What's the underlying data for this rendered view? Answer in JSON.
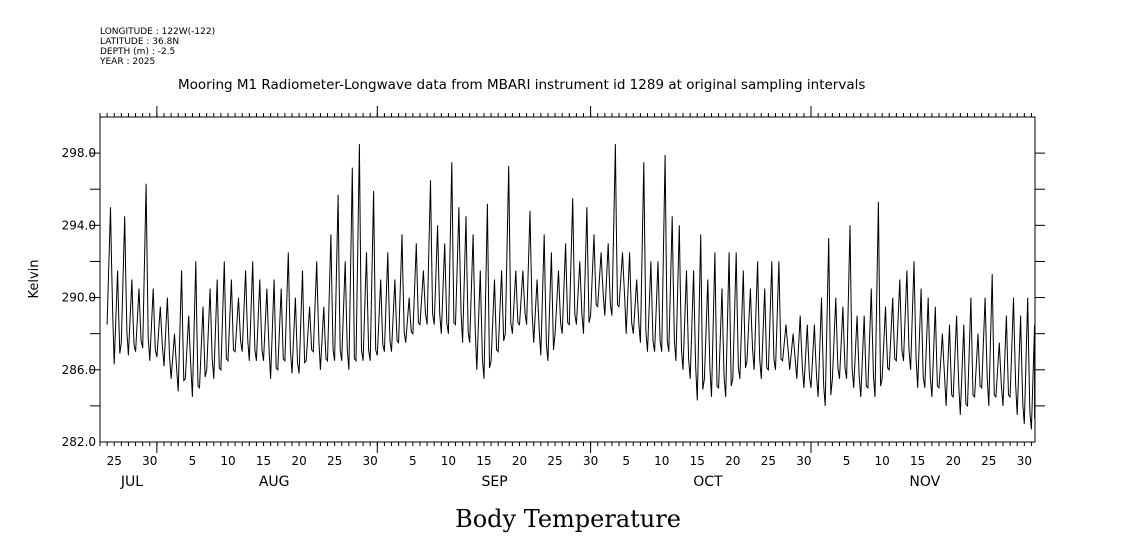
{
  "header": {
    "longitude": "LONGITUDE : 122W(-122)",
    "latitude": "LATITUDE : 36.8N",
    "depth": "DEPTH (m) : -2.5",
    "year": "YEAR : 2025"
  },
  "caption": "Body Temperature",
  "chart_data": {
    "type": "line",
    "title": "Mooring M1 Radiometer-Longwave data from MBARI instrument id 1289 at original sampling intervals",
    "ylabel": "Kelvin",
    "xlabel": "",
    "ylim": [
      282.0,
      300.0
    ],
    "yticks": [
      282.0,
      286.0,
      290.0,
      294.0,
      298.0
    ],
    "ytick_labels": [
      "282.0",
      "286.0",
      "290.0",
      "294.0",
      "298.0"
    ],
    "x_unit": "day of year 2025",
    "xlim": [
      204,
      335.5
    ],
    "x_day_labels": [
      {
        "day": 206,
        "label": "25"
      },
      {
        "day": 211,
        "label": "30"
      },
      {
        "day": 217,
        "label": "5"
      },
      {
        "day": 222,
        "label": "10"
      },
      {
        "day": 227,
        "label": "15"
      },
      {
        "day": 232,
        "label": "20"
      },
      {
        "day": 237,
        "label": "25"
      },
      {
        "day": 242,
        "label": "30"
      },
      {
        "day": 248,
        "label": "5"
      },
      {
        "day": 253,
        "label": "10"
      },
      {
        "day": 258,
        "label": "15"
      },
      {
        "day": 263,
        "label": "20"
      },
      {
        "day": 268,
        "label": "25"
      },
      {
        "day": 273,
        "label": "30"
      },
      {
        "day": 278,
        "label": "5"
      },
      {
        "day": 283,
        "label": "10"
      },
      {
        "day": 288,
        "label": "15"
      },
      {
        "day": 293,
        "label": "20"
      },
      {
        "day": 298,
        "label": "25"
      },
      {
        "day": 303,
        "label": "30"
      },
      {
        "day": 309,
        "label": "5"
      },
      {
        "day": 314,
        "label": "10"
      },
      {
        "day": 319,
        "label": "15"
      },
      {
        "day": 324,
        "label": "20"
      },
      {
        "day": 329,
        "label": "25"
      },
      {
        "day": 334,
        "label": "30"
      }
    ],
    "month_boundaries": [
      212,
      243,
      273,
      304
    ],
    "month_labels": [
      {
        "day": 208.5,
        "label": "JUL"
      },
      {
        "day": 228.5,
        "label": "AUG"
      },
      {
        "day": 259.5,
        "label": "SEP"
      },
      {
        "day": 289.5,
        "label": "OCT"
      },
      {
        "day": 320,
        "label": "NOV"
      }
    ],
    "series": [
      {
        "name": "Radiometer-Longwave",
        "sampling": "daily min / max envelope (diurnal cycle)",
        "days": [
          205,
          206,
          207,
          208,
          209,
          210,
          211,
          212,
          213,
          214,
          215,
          216,
          217,
          218,
          219,
          220,
          221,
          222,
          223,
          224,
          225,
          226,
          227,
          228,
          229,
          230,
          231,
          232,
          233,
          234,
          235,
          236,
          237,
          238,
          239,
          240,
          241,
          242,
          243,
          244,
          245,
          246,
          247,
          248,
          249,
          250,
          251,
          252,
          253,
          254,
          255,
          256,
          257,
          258,
          259,
          260,
          261,
          262,
          263,
          264,
          265,
          266,
          267,
          268,
          269,
          270,
          271,
          272,
          273,
          274,
          275,
          276,
          277,
          278,
          279,
          280,
          281,
          282,
          283,
          284,
          285,
          286,
          287,
          288,
          289,
          290,
          291,
          292,
          293,
          294,
          295,
          296,
          297,
          298,
          299,
          300,
          301,
          302,
          303,
          304,
          305,
          306,
          307,
          308,
          309,
          310,
          311,
          312,
          313,
          314,
          315,
          316,
          317,
          318,
          319,
          320,
          321,
          322,
          323,
          324,
          325,
          326,
          327,
          328,
          329,
          330,
          331,
          332,
          333,
          334,
          335
        ],
        "daily_max": [
          295.0,
          291.5,
          294.5,
          291.0,
          290.5,
          296.3,
          290.5,
          289.5,
          290.0,
          288.0,
          291.5,
          289.0,
          292.0,
          289.5,
          290.5,
          291.0,
          292.0,
          291.0,
          290.0,
          291.5,
          292.0,
          291.0,
          290.5,
          291.0,
          290.5,
          292.5,
          290.0,
          291.5,
          289.5,
          292.0,
          289.5,
          293.5,
          295.7,
          292.0,
          297.2,
          298.5,
          292.5,
          295.9,
          291.0,
          292.5,
          291.0,
          293.5,
          290.0,
          293.0,
          291.5,
          296.5,
          294.0,
          293.0,
          297.5,
          295.0,
          294.5,
          293.5,
          291.5,
          295.2,
          291.0,
          291.5,
          297.3,
          291.5,
          291.5,
          294.8,
          291.0,
          293.5,
          292.5,
          291.5,
          293.0,
          295.5,
          292.0,
          295.0,
          293.5,
          292.5,
          293.0,
          298.5,
          292.5,
          292.5,
          291.0,
          297.5,
          292.0,
          292.0,
          297.9,
          294.5,
          294.0,
          291.5,
          291.5,
          293.5,
          291.0,
          292.5,
          290.5,
          292.5,
          292.5,
          291.5,
          290.5,
          292.0,
          290.5,
          292.0,
          292.0,
          288.5,
          288.0,
          289.0,
          288.5,
          288.5,
          290.0,
          293.3,
          290.0,
          289.5,
          294.0,
          289.0,
          289.0,
          290.5,
          295.3,
          289.5,
          290.0,
          291.0,
          291.5,
          292.0,
          290.5,
          290.0,
          289.5,
          288.0,
          288.5,
          289.0,
          288.5,
          290.0,
          288.0,
          290.0,
          291.3,
          287.5,
          289.0,
          290.0,
          289.0,
          290.0,
          288.5
        ],
        "daily_min": [
          288.5,
          286.3,
          287.5,
          286.8,
          287.0,
          287.2,
          286.5,
          286.7,
          286.2,
          285.5,
          284.8,
          285.5,
          284.5,
          285.0,
          286.0,
          285.5,
          286.0,
          286.5,
          287.0,
          287.0,
          286.5,
          286.5,
          286.5,
          285.5,
          286.0,
          286.5,
          285.8,
          285.8,
          286.5,
          287.0,
          286.0,
          286.5,
          286.5,
          286.5,
          286.0,
          286.5,
          286.5,
          286.5,
          286.8,
          287.0,
          287.0,
          287.5,
          287.5,
          288.0,
          288.5,
          288.5,
          288.5,
          288.0,
          288.0,
          288.5,
          287.5,
          287.5,
          286.0,
          285.5,
          286.5,
          287.0,
          288.0,
          288.0,
          288.5,
          288.5,
          287.5,
          286.8,
          286.5,
          288.0,
          288.0,
          288.5,
          288.5,
          288.0,
          289.0,
          289.5,
          289.0,
          289.0,
          289.5,
          288.0,
          288.0,
          287.5,
          287.0,
          287.0,
          287.0,
          287.0,
          286.5,
          286.0,
          285.5,
          284.3,
          285.5,
          284.5,
          285.0,
          284.5,
          285.5,
          285.5,
          286.5,
          286.0,
          285.5,
          286.0,
          286.0,
          286.5,
          286.0,
          285.5,
          285.0,
          285.0,
          284.5,
          284.0,
          285.5,
          285.5,
          285.5,
          285.0,
          284.5,
          285.0,
          284.5,
          285.5,
          286.0,
          286.5,
          286.5,
          286.0,
          285.0,
          285.0,
          284.5,
          285.0,
          284.0,
          284.5,
          283.5,
          284.0,
          284.5,
          285.0,
          284.0,
          284.5,
          284.0,
          284.5,
          283.5,
          283.0,
          282.7
        ]
      }
    ]
  }
}
